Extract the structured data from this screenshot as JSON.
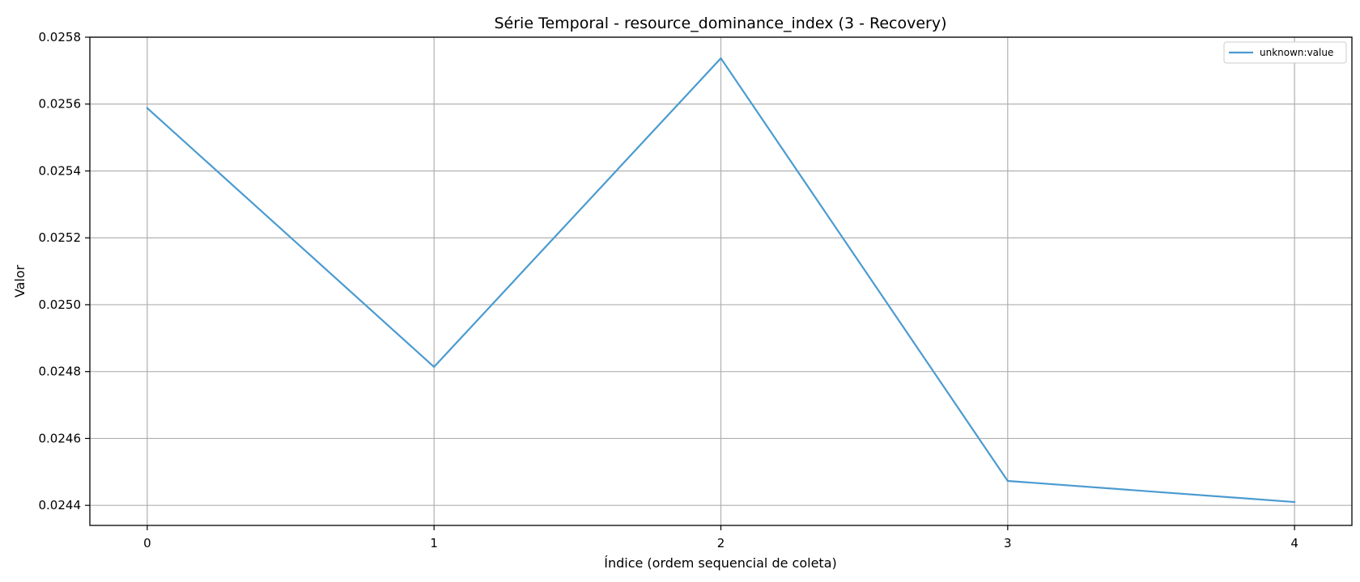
{
  "chart_data": {
    "type": "line",
    "title": "Série Temporal - resource_dominance_index (3 - Recovery)",
    "xlabel": "Índice (ordem sequencial de coleta)",
    "ylabel": "Valor",
    "x": [
      0,
      1,
      2,
      3,
      4
    ],
    "x_ticks": [
      "0",
      "1",
      "2",
      "3",
      "4"
    ],
    "y_ticks": [
      "0.0244",
      "0.0246",
      "0.0248",
      "0.0250",
      "0.0252",
      "0.0254",
      "0.0256",
      "0.0258"
    ],
    "xlim": [
      -0.2,
      4.2
    ],
    "ylim": [
      0.02434,
      0.0258
    ],
    "grid": true,
    "legend_position": "top-right",
    "series": [
      {
        "name": "unknown:value",
        "color": "#4a9bd0",
        "values": [
          0.025588,
          0.024814,
          0.025737,
          0.024473,
          0.02441
        ]
      }
    ]
  }
}
